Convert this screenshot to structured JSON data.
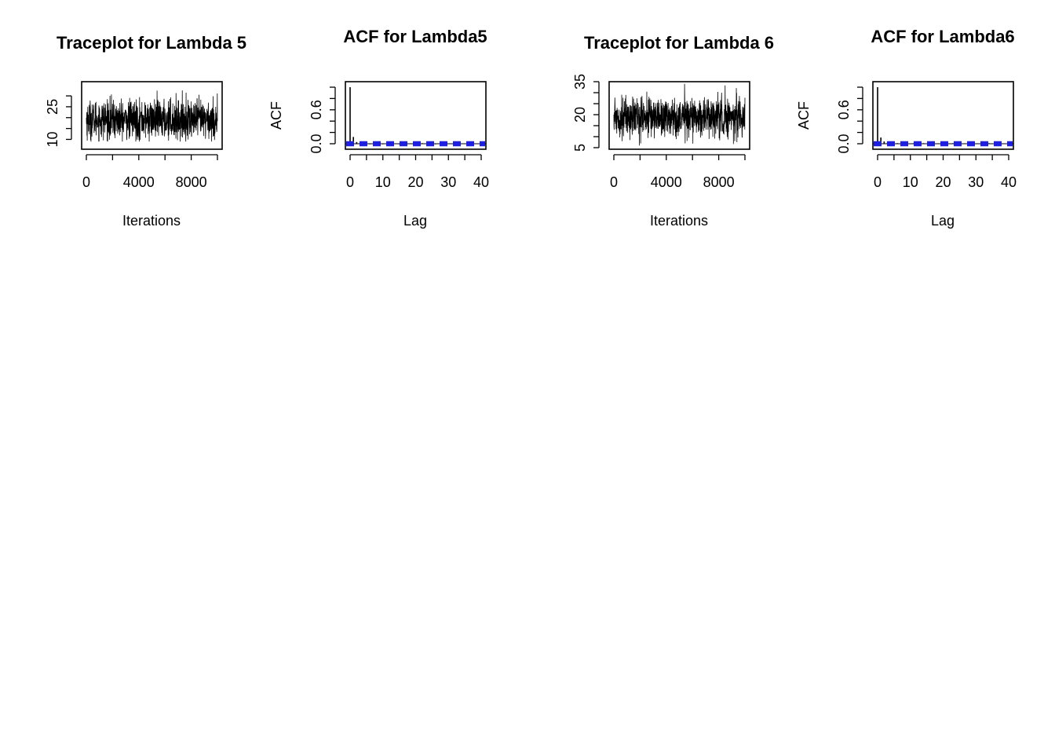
{
  "chart_data": [
    {
      "type": "line",
      "title": "Traceplot for Lambda 5",
      "xlabel": "Iterations",
      "ylabel": "",
      "xlim": [
        0,
        10000
      ],
      "ylim": [
        8,
        34
      ],
      "xticks": [
        0,
        4000,
        8000
      ],
      "xtick_minor": [
        2000,
        6000,
        10000
      ],
      "yticks": [
        10,
        25
      ],
      "ytick_minor": [
        15,
        20,
        30
      ],
      "series_summary": {
        "n_iterations": 10000,
        "center": 19,
        "spread": 4.5,
        "min": 9,
        "max": 34
      }
    },
    {
      "type": "bar",
      "title": "ACF for Lambda5",
      "xlabel": "Lag",
      "ylabel": "ACF",
      "xlim": [
        0,
        40
      ],
      "ylim": [
        0,
        1
      ],
      "xticks": [
        0,
        10,
        20,
        30,
        40
      ],
      "xtick_minor": [
        5,
        15,
        25,
        35
      ],
      "yticks": [
        0.0,
        0.6
      ],
      "ytick_minor": [
        0.2,
        0.4,
        0.8,
        1.0
      ],
      "lags": [
        0,
        1,
        2,
        3,
        4,
        5,
        6,
        7,
        8,
        9,
        10,
        11,
        12,
        13,
        14,
        15,
        16,
        17,
        18,
        19,
        20,
        21,
        22,
        23,
        24,
        25,
        26,
        27,
        28,
        29,
        30,
        31,
        32,
        33,
        34,
        35,
        36,
        37,
        38,
        39,
        40
      ],
      "values": [
        1.0,
        0.12,
        0.03,
        0.01,
        0.0,
        0.01,
        -0.01,
        0.0,
        0.01,
        0.0,
        -0.01,
        0.0,
        0.01,
        0.0,
        0.0,
        -0.01,
        0.01,
        0.0,
        0.0,
        0.0,
        -0.01,
        0.0,
        0.01,
        0.0,
        0.0,
        0.0,
        -0.01,
        0.0,
        0.0,
        0.01,
        0.0,
        0.0,
        0.0,
        -0.01,
        0.0,
        0.0,
        0.0,
        0.01,
        0.0,
        0.0,
        0.0
      ],
      "confidence_band": [
        -0.02,
        0.02
      ]
    },
    {
      "type": "line",
      "title": "Traceplot for Lambda 6",
      "xlabel": "Iterations",
      "ylabel": "",
      "xlim": [
        0,
        10000
      ],
      "ylim": [
        5,
        35
      ],
      "xticks": [
        0,
        4000,
        8000
      ],
      "xtick_minor": [
        2000,
        6000,
        10000
      ],
      "yticks": [
        5,
        20,
        35
      ],
      "ytick_minor": [
        10,
        15,
        25,
        30
      ],
      "series_summary": {
        "n_iterations": 10000,
        "center": 19,
        "spread": 4.5,
        "min": 6,
        "max": 34
      }
    },
    {
      "type": "bar",
      "title": "ACF for Lambda6",
      "xlabel": "Lag",
      "ylabel": "ACF",
      "xlim": [
        0,
        40
      ],
      "ylim": [
        0,
        1
      ],
      "xticks": [
        0,
        10,
        20,
        30,
        40
      ],
      "xtick_minor": [
        5,
        15,
        25,
        35
      ],
      "yticks": [
        0.0,
        0.6
      ],
      "ytick_minor": [
        0.2,
        0.4,
        0.8,
        1.0
      ],
      "lags": [
        0,
        1,
        2,
        3,
        4,
        5,
        6,
        7,
        8,
        9,
        10,
        11,
        12,
        13,
        14,
        15,
        16,
        17,
        18,
        19,
        20,
        21,
        22,
        23,
        24,
        25,
        26,
        27,
        28,
        29,
        30,
        31,
        32,
        33,
        34,
        35,
        36,
        37,
        38,
        39,
        40
      ],
      "values": [
        1.0,
        0.11,
        0.04,
        0.02,
        0.01,
        0.0,
        0.01,
        0.0,
        -0.01,
        0.0,
        0.0,
        0.01,
        0.0,
        0.0,
        0.01,
        0.0,
        -0.01,
        0.0,
        0.0,
        0.0,
        0.0,
        0.0,
        0.0,
        0.01,
        0.0,
        0.0,
        0.0,
        0.0,
        -0.01,
        0.0,
        0.0,
        0.0,
        0.0,
        0.0,
        0.01,
        0.0,
        0.0,
        0.0,
        0.0,
        0.0,
        0.0
      ],
      "confidence_band": [
        -0.02,
        0.02
      ]
    }
  ],
  "colors": {
    "trace": "#000000",
    "acf_bar": "#000000",
    "confidence_band": "#1f1fe0"
  }
}
